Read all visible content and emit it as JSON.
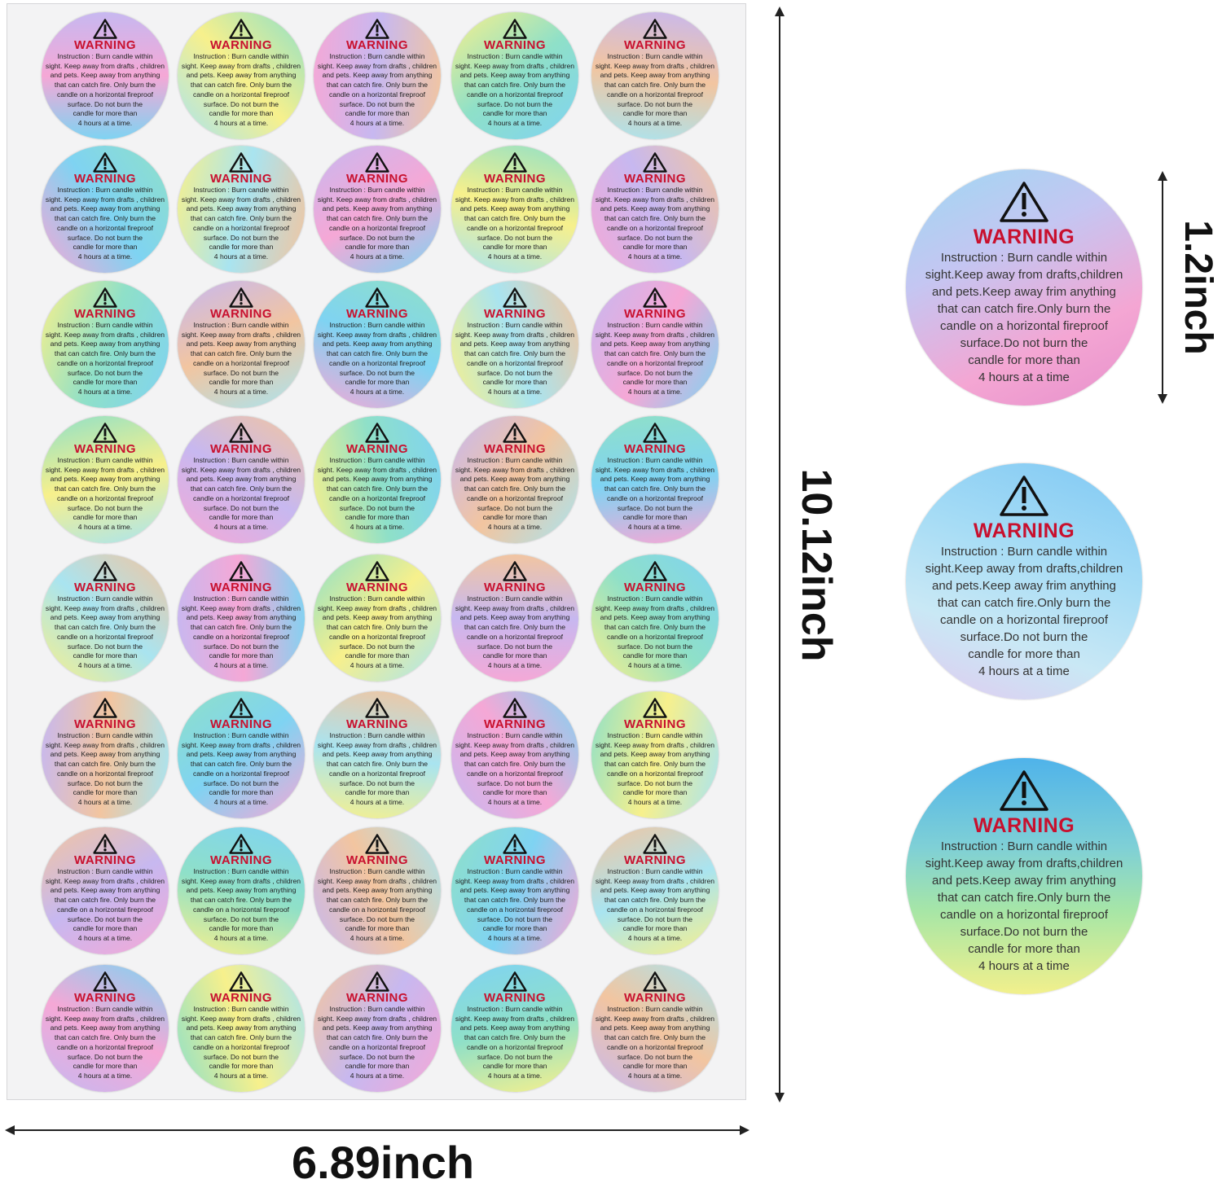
{
  "sheet": {
    "rows": 8,
    "cols": 5
  },
  "sticker": {
    "heading": "WARNING",
    "sheet_lines": [
      "Instruction : Burn candle within",
      "sight. Keep away from drafts , children",
      "and pets. Keep away from anything",
      "that can catch fire. Only burn the",
      "candle on a horizontal fireproof",
      "surface. Do not burn the",
      "candle for more than",
      "4 hours at a time."
    ],
    "large_lines": [
      "Instruction : Burn candle within",
      "sight.Keep away from drafts,children",
      "and pets.Keep away frim anything",
      "that can catch fire.Only burn the",
      "candle on a horizontal fireproof",
      "surface.Do not burn the",
      "candle for more than",
      "4 hours at a time"
    ],
    "icon": "warning-triangle-icon"
  },
  "dimensions": {
    "width": "6.89inch",
    "height": "10.12inch",
    "diameter": "1.2inch"
  },
  "colors": {
    "warning_red": "#c8102e",
    "holo_palette": [
      "#7fd3f2",
      "#a9e4f0",
      "#f5a8d6",
      "#f7f08c",
      "#c7b8f0",
      "#8fe0c8",
      "#f2c5a0"
    ]
  }
}
